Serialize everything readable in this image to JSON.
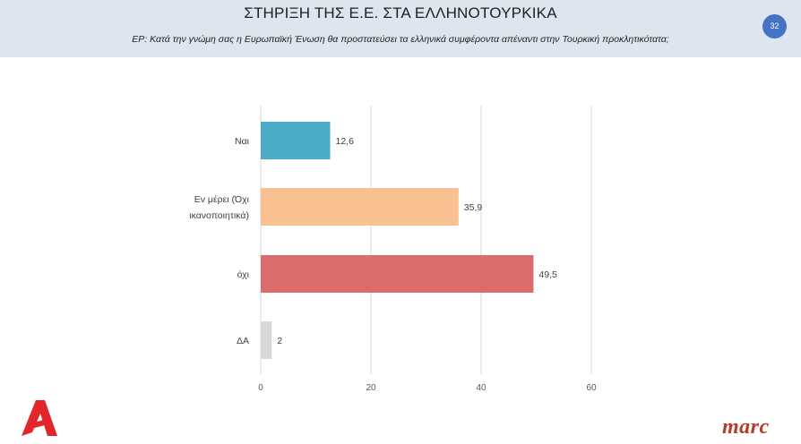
{
  "header": {
    "title": "ΣΤΗΡΙΞΗ ΤΗΣ Ε.Ε. ΣΤΑ ΕΛΛΗΝΟΤΟΥΡΚΙΚΑ",
    "subtitle": "ΕΡ: Κατά την γνώμη σας η Ευρωπαϊκή Ένωση  θα προστατεύσει τα ελληνικά συμφέροντα απέναντι στην Τουρκική προκλητικότατα;",
    "page_number": "32"
  },
  "brand": {
    "left_logo": "Α",
    "right_logo": "marc"
  },
  "chart_data": {
    "type": "bar",
    "orientation": "horizontal",
    "categories": [
      [
        "Ναι"
      ],
      [
        "Εν μέρει  (Όχι",
        "ικανοποιητικά)"
      ],
      [
        "όχι"
      ],
      [
        "ΔΑ"
      ]
    ],
    "values": [
      12.6,
      35.9,
      49.5,
      2
    ],
    "value_labels": [
      "12,6",
      "35,9",
      "49,5",
      "2"
    ],
    "colors": [
      "#4bacc6",
      "#f9c191",
      "#dc6b6b",
      "#d9d9d9"
    ],
    "xlim": [
      0,
      60
    ],
    "xticks": [
      0,
      20,
      40,
      60
    ],
    "grid": true
  }
}
